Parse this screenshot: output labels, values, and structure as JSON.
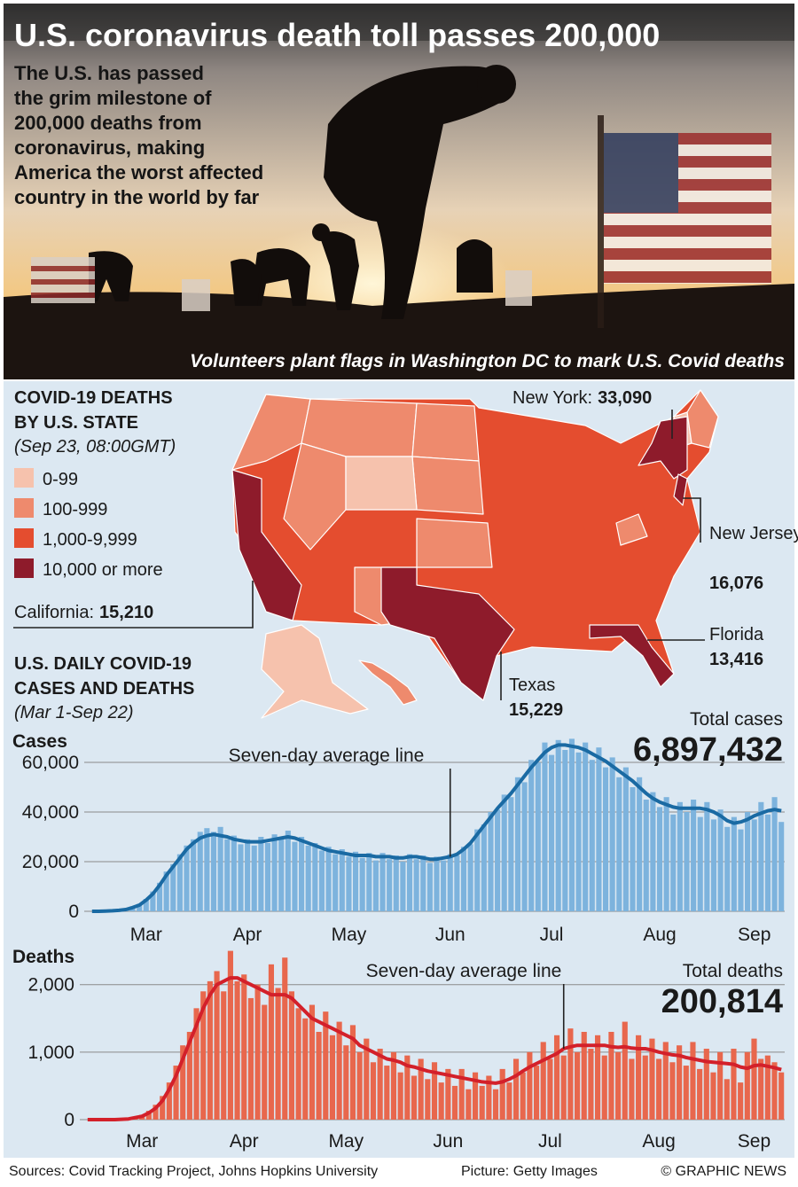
{
  "header": {
    "title": "U.S. coronavirus death toll passes 200,000",
    "subtitle": [
      "The U.S. has passed",
      "the grim milestone of",
      "200,000 deaths from",
      "coronavirus, making",
      "America the worst affected",
      "country in the world by far"
    ],
    "caption": "Volunteers plant flags in Washington DC to mark U.S. Covid deaths"
  },
  "map": {
    "title": [
      "COVID-19 DEATHS",
      "BY U.S. STATE"
    ],
    "subtitle": "(Sep 23, 08:00GMT)",
    "legend": [
      {
        "label": "0-99",
        "color": "#f6c2ad"
      },
      {
        "label": "100-999",
        "color": "#ee8a6d"
      },
      {
        "label": "1,000-9,999",
        "color": "#e44d2f"
      },
      {
        "label": "10,000 or more",
        "color": "#8e1b2b"
      }
    ],
    "callouts": [
      {
        "name": "California:",
        "value": "15,210"
      },
      {
        "name": "New York:",
        "value": "33,090"
      },
      {
        "name": "New Jersey",
        "value": "16,076"
      },
      {
        "name": "Florida",
        "value": "13,416"
      },
      {
        "name": "Texas",
        "value": "15,229"
      }
    ]
  },
  "charts_heading": {
    "title": [
      "U.S. DAILY COVID-19",
      "CASES AND DEATHS"
    ],
    "subtitle": "(Mar 1-Sep 22)"
  },
  "chart_data": [
    {
      "type": "bar",
      "y_label": "Cases",
      "total_label": "Total cases",
      "total": "6,897,432",
      "ylim": [
        0,
        70000
      ],
      "yticks": [
        0,
        {
          "value": 20000,
          "label": "20,000"
        },
        {
          "value": 40000,
          "label": "40,000"
        },
        {
          "value": 60000,
          "label": "60,000"
        }
      ],
      "grid": true,
      "categories": [
        null,
        null,
        null,
        null,
        null,
        null,
        null,
        null,
        "Mar",
        null,
        null,
        null,
        null,
        null,
        null,
        null,
        null,
        null,
        null,
        null,
        null,
        null,
        null,
        "Apr",
        null,
        null,
        null,
        null,
        null,
        null,
        null,
        null,
        null,
        null,
        null,
        null,
        null,
        null,
        "May",
        null,
        null,
        null,
        null,
        null,
        null,
        null,
        null,
        null,
        null,
        null,
        null,
        null,
        null,
        "Jun",
        null,
        null,
        null,
        null,
        null,
        null,
        null,
        null,
        null,
        null,
        null,
        null,
        null,
        null,
        "Jul",
        null,
        null,
        null,
        null,
        null,
        null,
        null,
        null,
        null,
        null,
        null,
        null,
        null,
        null,
        null,
        "Aug",
        null,
        null,
        null,
        null,
        null,
        null,
        null,
        null,
        null,
        null,
        null,
        null,
        null,
        "Sep",
        null,
        null,
        null,
        null
      ],
      "series": [
        {
          "color": "#7db3dd",
          "values": [
            0,
            0,
            200,
            300,
            600,
            900,
            2000,
            3000,
            5000,
            8000,
            11500,
            16000,
            19000,
            23000,
            26500,
            29000,
            32000,
            33500,
            32000,
            34000,
            29000,
            30500,
            27000,
            29000,
            26500,
            30000,
            27500,
            31000,
            29000,
            32500,
            28000,
            30000,
            26500,
            27500,
            24500,
            26000,
            23000,
            25000,
            22000,
            24000,
            21500,
            23500,
            20500,
            23500,
            21000,
            22500,
            20000,
            23000,
            21000,
            22500,
            19500,
            22000,
            20500,
            23000,
            22500,
            26000,
            27000,
            33000,
            35000,
            40000,
            41000,
            47000,
            46000,
            54000,
            52000,
            61000,
            60000,
            68000,
            63000,
            69000,
            65000,
            69500,
            64000,
            68000,
            61000,
            66000,
            58000,
            62000,
            54000,
            58000,
            50000,
            54000,
            45000,
            48000,
            42000,
            46000,
            39000,
            44000,
            40000,
            45000,
            38000,
            44000,
            37000,
            41000,
            34000,
            38000,
            33000,
            40000,
            37000,
            44000,
            39000,
            46000,
            36000
          ]
        },
        {
          "name": "Seven-day average line",
          "color": "#1a6aa3",
          "values": [
            0,
            0,
            100,
            200,
            400,
            700,
            1500,
            2500,
            4500,
            7000,
            10500,
            14500,
            18000,
            21500,
            25000,
            27500,
            29500,
            30500,
            31000,
            30500,
            30000,
            29000,
            28500,
            28000,
            28000,
            28000,
            28500,
            29000,
            29500,
            30000,
            29500,
            28500,
            27500,
            26500,
            25500,
            24500,
            24000,
            23500,
            23000,
            22500,
            22500,
            22500,
            22000,
            22000,
            22000,
            21500,
            21500,
            22000,
            22000,
            21500,
            21000,
            21000,
            21500,
            22000,
            23000,
            25000,
            27500,
            31000,
            34500,
            38000,
            41500,
            44500,
            47500,
            51000,
            54500,
            58000,
            61000,
            64000,
            66000,
            67000,
            67000,
            66500,
            66000,
            65000,
            63500,
            62000,
            60500,
            58500,
            56500,
            54500,
            52500,
            50000,
            47500,
            45500,
            44000,
            43000,
            42000,
            41500,
            41500,
            41500,
            41500,
            41000,
            40000,
            38500,
            36500,
            35500,
            36000,
            37000,
            38500,
            39500,
            40500,
            41000,
            40500
          ]
        }
      ]
    },
    {
      "type": "bar",
      "y_label": "Deaths",
      "total_label": "Total deaths",
      "total": "200,814",
      "ylim": [
        0,
        2600
      ],
      "yticks": [
        0,
        {
          "value": 1000,
          "label": "1,000"
        },
        {
          "value": 2000,
          "label": "2,000"
        }
      ],
      "grid": true,
      "categories": [
        null,
        null,
        null,
        null,
        null,
        null,
        null,
        null,
        "Mar",
        null,
        null,
        null,
        null,
        null,
        null,
        null,
        null,
        null,
        null,
        null,
        null,
        null,
        null,
        "Apr",
        null,
        null,
        null,
        null,
        null,
        null,
        null,
        null,
        null,
        null,
        null,
        null,
        null,
        null,
        "May",
        null,
        null,
        null,
        null,
        null,
        null,
        null,
        null,
        null,
        null,
        null,
        null,
        null,
        null,
        "Jun",
        null,
        null,
        null,
        null,
        null,
        null,
        null,
        null,
        null,
        null,
        null,
        null,
        null,
        null,
        "Jul",
        null,
        null,
        null,
        null,
        null,
        null,
        null,
        null,
        null,
        null,
        null,
        null,
        null,
        null,
        null,
        "Aug",
        null,
        null,
        null,
        null,
        null,
        null,
        null,
        null,
        null,
        null,
        null,
        null,
        null,
        "Sep",
        null,
        null,
        null,
        null
      ],
      "series": [
        {
          "color": "#e8674d",
          "values": [
            0,
            0,
            0,
            0,
            2,
            8,
            15,
            40,
            70,
            130,
            220,
            350,
            550,
            800,
            1100,
            1300,
            1650,
            1900,
            2050,
            2200,
            1900,
            2500,
            2050,
            2150,
            1800,
            2000,
            1700,
            2300,
            1950,
            2400,
            1900,
            1650,
            1500,
            1700,
            1300,
            1600,
            1250,
            1450,
            1100,
            1400,
            1000,
            1200,
            850,
            1050,
            800,
            1000,
            700,
            950,
            650,
            900,
            600,
            850,
            550,
            750,
            500,
            750,
            450,
            700,
            500,
            650,
            450,
            750,
            550,
            900,
            700,
            1000,
            800,
            1150,
            900,
            1250,
            950,
            1350,
            1000,
            1300,
            1050,
            1250,
            950,
            1300,
            1000,
            1450,
            900,
            1250,
            950,
            1200,
            900,
            1150,
            850,
            1100,
            800,
            1150,
            750,
            1050,
            700,
            1000,
            600,
            1050,
            550,
            1000,
            1200,
            900,
            950,
            850,
            700
          ]
        },
        {
          "name": "Seven-day average line",
          "color": "#d3202a",
          "values": [
            0,
            0,
            0,
            0,
            0,
            5,
            10,
            30,
            50,
            100,
            170,
            280,
            450,
            650,
            900,
            1150,
            1400,
            1650,
            1850,
            2000,
            2050,
            2100,
            2100,
            2050,
            2000,
            1950,
            1900,
            1850,
            1850,
            1850,
            1800,
            1700,
            1600,
            1500,
            1450,
            1400,
            1350,
            1300,
            1250,
            1200,
            1100,
            1050,
            1000,
            950,
            900,
            880,
            850,
            800,
            780,
            750,
            720,
            700,
            680,
            660,
            640,
            620,
            600,
            580,
            560,
            550,
            540,
            560,
            600,
            650,
            720,
            780,
            830,
            880,
            930,
            980,
            1050,
            1080,
            1100,
            1100,
            1100,
            1100,
            1100,
            1080,
            1070,
            1080,
            1060,
            1050,
            1050,
            1030,
            1000,
            980,
            960,
            950,
            920,
            900,
            880,
            860,
            850,
            840,
            830,
            820,
            780,
            760,
            800,
            810,
            790,
            770,
            740
          ]
        }
      ]
    }
  ],
  "footer": {
    "sources": "Sources: Covid Tracking Project, Johns Hopkins University",
    "picture": "Picture: Getty Images",
    "credit": "© GRAPHIC NEWS"
  }
}
